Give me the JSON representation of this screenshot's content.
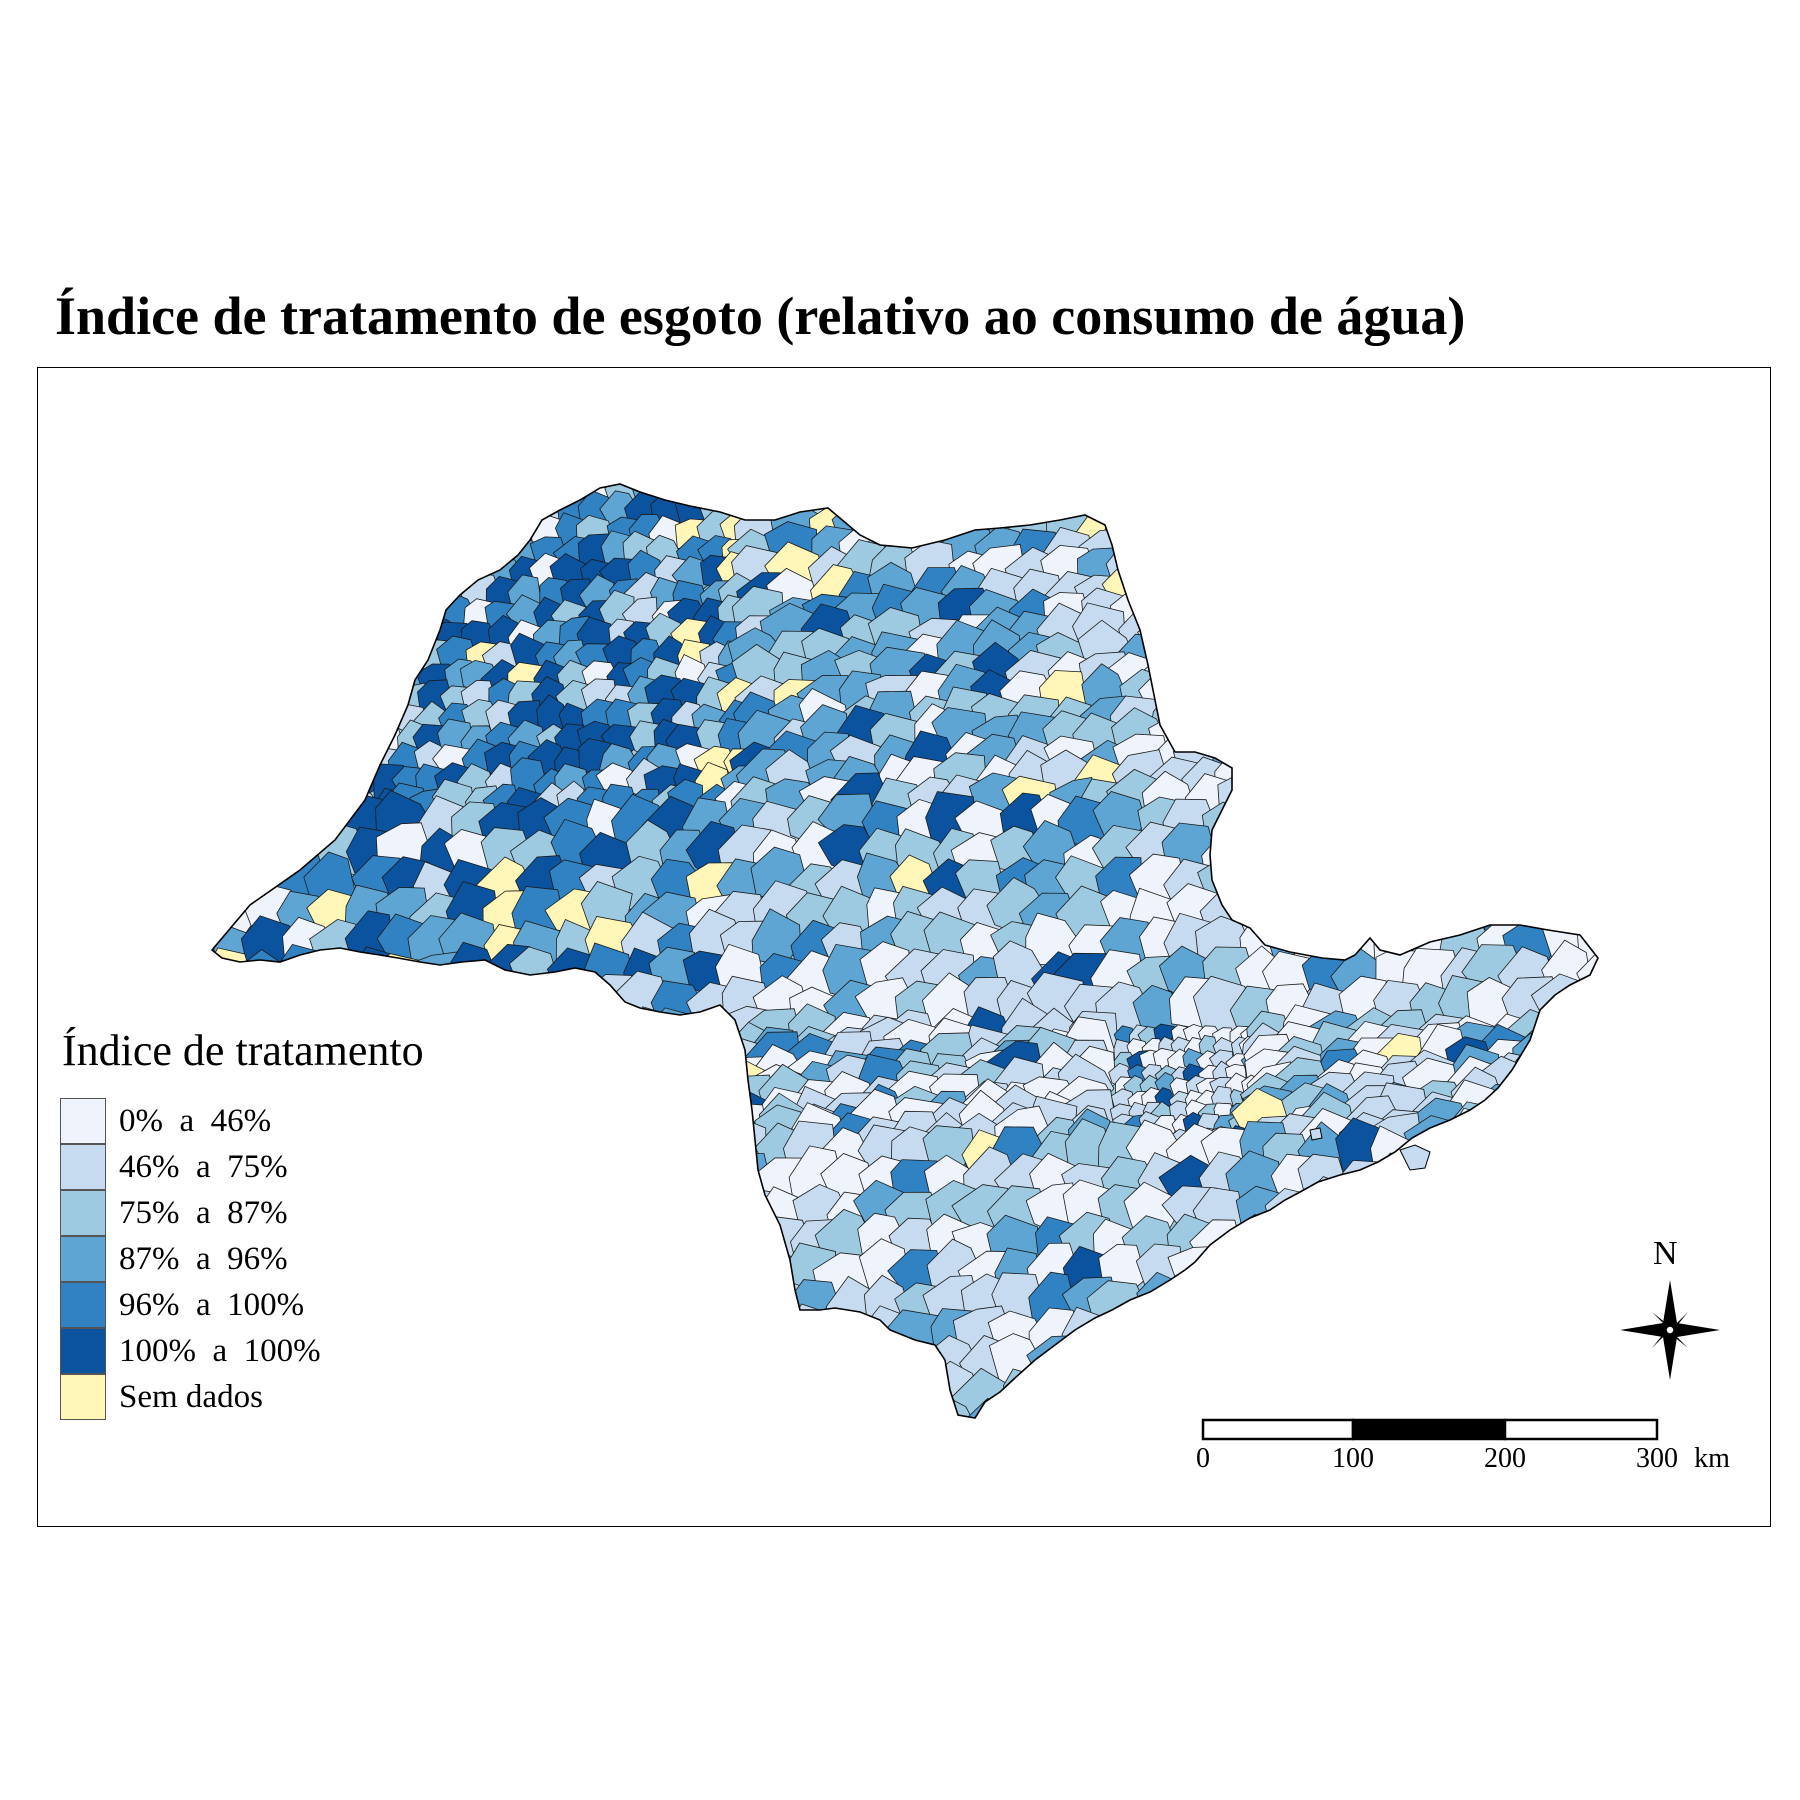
{
  "title": "Índice de tratamento de esgoto (relativo ao consumo de água)",
  "legend": {
    "title": "Índice de tratamento",
    "items": [
      {
        "label": "0%  a  46%",
        "color": "#eff3fb"
      },
      {
        "label": "46%  a  75%",
        "color": "#c6dbef"
      },
      {
        "label": "75%  a  87%",
        "color": "#9ecae1"
      },
      {
        "label": "87%  a  96%",
        "color": "#5ea5d4"
      },
      {
        "label": "96%  a  100%",
        "color": "#3182c2"
      },
      {
        "label": "100%  a  100%",
        "color": "#0b539e"
      },
      {
        "label": "Sem dados",
        "color": "#fff6b8"
      }
    ]
  },
  "scale_bar": {
    "ticks": [
      "0",
      "100",
      "200",
      "300"
    ],
    "unit": "km"
  },
  "north_arrow": {
    "label": "N",
    "icon": "compass-rose-icon"
  }
}
